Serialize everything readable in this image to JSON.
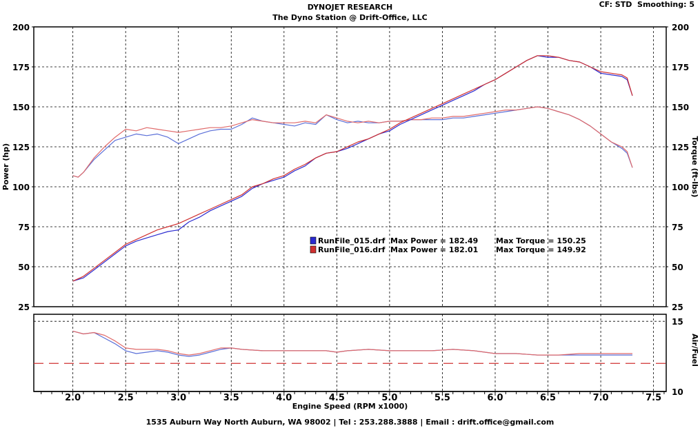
{
  "header": {
    "title": "DYNOJET RESEARCH",
    "subtitle": "The Dyno Station @ Drift-Office, LLC",
    "cf_label": "CF: STD",
    "smoothing_label": "Smoothing: 5"
  },
  "footer": {
    "text": "1535 Auburn Way North Auburn, WA 98002 | Tel : 253.288.3888 | Email : drift.office@gmail.com"
  },
  "chart_data": {
    "type": "line",
    "main": {
      "xlabel": "Engine Speed (RPM x1000)",
      "ylabel_left": "Power (hp)",
      "ylabel_right": "Torque (ft-lbs)",
      "xlim": [
        1.63,
        7.62
      ],
      "ylim": [
        25,
        200
      ],
      "y_ticks": [
        25,
        50,
        75,
        100,
        125,
        150,
        175,
        200
      ],
      "x_ticks": [
        2.0,
        2.5,
        3.0,
        3.5,
        4.0,
        4.5,
        5.0,
        5.5,
        6.0,
        6.5,
        7.0,
        7.5
      ],
      "x_tick_labels": [
        "2.0",
        "2.5",
        "3.0",
        "3.5",
        "4.0",
        "4.5",
        "5.0",
        "5.5",
        "6.0",
        "6.5",
        "7.0",
        "7.5"
      ],
      "grid": true,
      "series": [
        {
          "name": "RunFile_015.drf",
          "quantity": "power",
          "color": "#2b2bd0",
          "x": [
            2.0,
            2.1,
            2.2,
            2.3,
            2.4,
            2.5,
            2.6,
            2.7,
            2.8,
            2.9,
            3.0,
            3.1,
            3.2,
            3.3,
            3.4,
            3.5,
            3.6,
            3.7,
            3.8,
            3.9,
            4.0,
            4.1,
            4.2,
            4.3,
            4.4,
            4.5,
            4.6,
            4.7,
            4.8,
            4.9,
            5.0,
            5.1,
            5.2,
            5.3,
            5.4,
            5.5,
            5.6,
            5.7,
            5.8,
            5.9,
            6.0,
            6.1,
            6.2,
            6.3,
            6.4,
            6.5,
            6.6,
            6.7,
            6.8,
            6.9,
            7.0,
            7.1,
            7.2,
            7.25,
            7.3
          ],
          "y": [
            41,
            43,
            48,
            53,
            58,
            63,
            66,
            68,
            70,
            72,
            73,
            78,
            81,
            85,
            88,
            91,
            94,
            99,
            102,
            104,
            106,
            110,
            113,
            118,
            121,
            122,
            124,
            127,
            130,
            133,
            135,
            139,
            142,
            145,
            148,
            151,
            154,
            157,
            160,
            164,
            167,
            171,
            175,
            179,
            182,
            181,
            181,
            179,
            178,
            175,
            171,
            170,
            169,
            167,
            157
          ]
        },
        {
          "name": "RunFile_016.drf",
          "quantity": "power",
          "color": "#d03030",
          "x": [
            2.0,
            2.1,
            2.2,
            2.3,
            2.4,
            2.5,
            2.6,
            2.7,
            2.8,
            2.9,
            3.0,
            3.1,
            3.2,
            3.3,
            3.4,
            3.5,
            3.6,
            3.7,
            3.8,
            3.9,
            4.0,
            4.1,
            4.2,
            4.3,
            4.4,
            4.5,
            4.6,
            4.7,
            4.8,
            4.9,
            5.0,
            5.1,
            5.2,
            5.3,
            5.4,
            5.5,
            5.6,
            5.7,
            5.8,
            5.9,
            6.0,
            6.1,
            6.2,
            6.3,
            6.4,
            6.5,
            6.6,
            6.7,
            6.8,
            6.9,
            7.0,
            7.1,
            7.2,
            7.25,
            7.3
          ],
          "y": [
            41,
            44,
            49,
            54,
            59,
            64,
            67,
            70,
            73,
            75,
            77,
            80,
            83,
            86,
            89,
            92,
            95,
            100,
            102,
            105,
            107,
            111,
            114,
            118,
            121,
            122,
            125,
            128,
            130,
            133,
            136,
            140,
            143,
            146,
            149,
            152,
            155,
            158,
            161,
            164,
            167,
            171,
            175,
            179,
            182,
            182,
            181,
            179,
            178,
            175,
            172,
            171,
            170,
            168,
            157
          ]
        },
        {
          "name": "RunFile_015.drf",
          "quantity": "torque",
          "color": "#5a6fd8",
          "x": [
            2.0,
            2.05,
            2.1,
            2.2,
            2.3,
            2.4,
            2.5,
            2.6,
            2.7,
            2.8,
            2.9,
            3.0,
            3.1,
            3.2,
            3.3,
            3.4,
            3.5,
            3.6,
            3.7,
            3.8,
            3.9,
            4.0,
            4.1,
            4.2,
            4.3,
            4.4,
            4.5,
            4.6,
            4.7,
            4.8,
            4.9,
            5.0,
            5.1,
            5.2,
            5.3,
            5.4,
            5.5,
            5.6,
            5.7,
            5.8,
            5.9,
            6.0,
            6.1,
            6.2,
            6.3,
            6.4,
            6.5,
            6.6,
            6.7,
            6.8,
            6.9,
            7.0,
            7.1,
            7.2,
            7.25,
            7.3
          ],
          "y": [
            107,
            106,
            109,
            117,
            123,
            129,
            131,
            133,
            132,
            133,
            131,
            127,
            130,
            133,
            135,
            136,
            136,
            139,
            143,
            141,
            140,
            139,
            138,
            140,
            139,
            145,
            142,
            140,
            141,
            140,
            140,
            141,
            141,
            142,
            142,
            142,
            142,
            143,
            143,
            144,
            145,
            146,
            147,
            148,
            149,
            150,
            149,
            147,
            145,
            142,
            138,
            133,
            128,
            124,
            121,
            112
          ]
        },
        {
          "name": "RunFile_016.drf",
          "quantity": "torque",
          "color": "#e06a6a",
          "x": [
            2.0,
            2.05,
            2.1,
            2.2,
            2.3,
            2.4,
            2.5,
            2.6,
            2.7,
            2.8,
            2.9,
            3.0,
            3.1,
            3.2,
            3.3,
            3.4,
            3.5,
            3.6,
            3.7,
            3.8,
            3.9,
            4.0,
            4.1,
            4.2,
            4.3,
            4.4,
            4.5,
            4.6,
            4.7,
            4.8,
            4.9,
            5.0,
            5.1,
            5.2,
            5.3,
            5.4,
            5.5,
            5.6,
            5.7,
            5.8,
            5.9,
            6.0,
            6.1,
            6.2,
            6.3,
            6.4,
            6.5,
            6.6,
            6.7,
            6.8,
            6.9,
            7.0,
            7.1,
            7.2,
            7.25,
            7.3
          ],
          "y": [
            107,
            106,
            109,
            118,
            125,
            131,
            136,
            135,
            137,
            136,
            135,
            134,
            135,
            136,
            137,
            137,
            138,
            140,
            142,
            141,
            140,
            140,
            140,
            141,
            140,
            145,
            143,
            141,
            140,
            141,
            140,
            141,
            141,
            142,
            142,
            143,
            143,
            144,
            144,
            145,
            146,
            147,
            148,
            148,
            149,
            150,
            149,
            147,
            145,
            142,
            138,
            133,
            128,
            125,
            122,
            112
          ]
        }
      ]
    },
    "afr": {
      "ylabel_right": "Air/Fuel",
      "ylim": [
        10,
        15.5
      ],
      "y_ticks": [
        10,
        15
      ],
      "reference_line": 12.0,
      "series": [
        {
          "name": "RunFile_015.drf",
          "color": "#5a6fd8",
          "x": [
            2.0,
            2.1,
            2.2,
            2.3,
            2.4,
            2.5,
            2.6,
            2.7,
            2.8,
            2.9,
            3.0,
            3.1,
            3.2,
            3.3,
            3.4,
            3.5,
            3.6,
            3.8,
            4.0,
            4.2,
            4.4,
            4.5,
            4.6,
            4.8,
            5.0,
            5.2,
            5.4,
            5.6,
            5.8,
            6.0,
            6.2,
            6.4,
            6.6,
            6.8,
            7.0,
            7.2,
            7.3
          ],
          "y": [
            14.3,
            14.1,
            14.2,
            13.8,
            13.4,
            12.9,
            12.7,
            12.8,
            12.9,
            12.8,
            12.6,
            12.5,
            12.6,
            12.8,
            13.0,
            13.1,
            13.0,
            12.9,
            12.9,
            12.9,
            12.9,
            12.8,
            12.9,
            13.0,
            12.9,
            12.9,
            12.9,
            13.0,
            12.9,
            12.7,
            12.7,
            12.6,
            12.6,
            12.6,
            12.6,
            12.6,
            12.6
          ]
        },
        {
          "name": "RunFile_016.drf",
          "color": "#e06a6a",
          "x": [
            2.0,
            2.1,
            2.2,
            2.3,
            2.4,
            2.5,
            2.6,
            2.7,
            2.8,
            2.9,
            3.0,
            3.1,
            3.2,
            3.3,
            3.4,
            3.5,
            3.6,
            3.8,
            4.0,
            4.2,
            4.4,
            4.5,
            4.6,
            4.8,
            5.0,
            5.2,
            5.4,
            5.6,
            5.8,
            6.0,
            6.2,
            6.4,
            6.6,
            6.8,
            7.0,
            7.2,
            7.3
          ],
          "y": [
            14.3,
            14.1,
            14.2,
            14.0,
            13.6,
            13.1,
            13.0,
            13.0,
            13.0,
            12.9,
            12.7,
            12.6,
            12.7,
            12.9,
            13.1,
            13.1,
            13.0,
            12.9,
            12.9,
            12.9,
            12.9,
            12.8,
            12.9,
            13.0,
            12.9,
            12.9,
            12.9,
            13.0,
            12.9,
            12.7,
            12.7,
            12.6,
            12.6,
            12.7,
            12.7,
            12.7,
            12.7
          ]
        }
      ]
    },
    "legend": {
      "placement": "center",
      "entries": [
        {
          "file": "RunFile_015.drf",
          "max_power": "Max Power = 182.49",
          "max_torque": "Max Torque = 150.25",
          "color": "#2b2bd0"
        },
        {
          "file": "RunFile_016.drf",
          "max_power": "Max Power = 182.01",
          "max_torque": "Max Torque = 149.92",
          "color": "#d03030"
        }
      ]
    }
  }
}
